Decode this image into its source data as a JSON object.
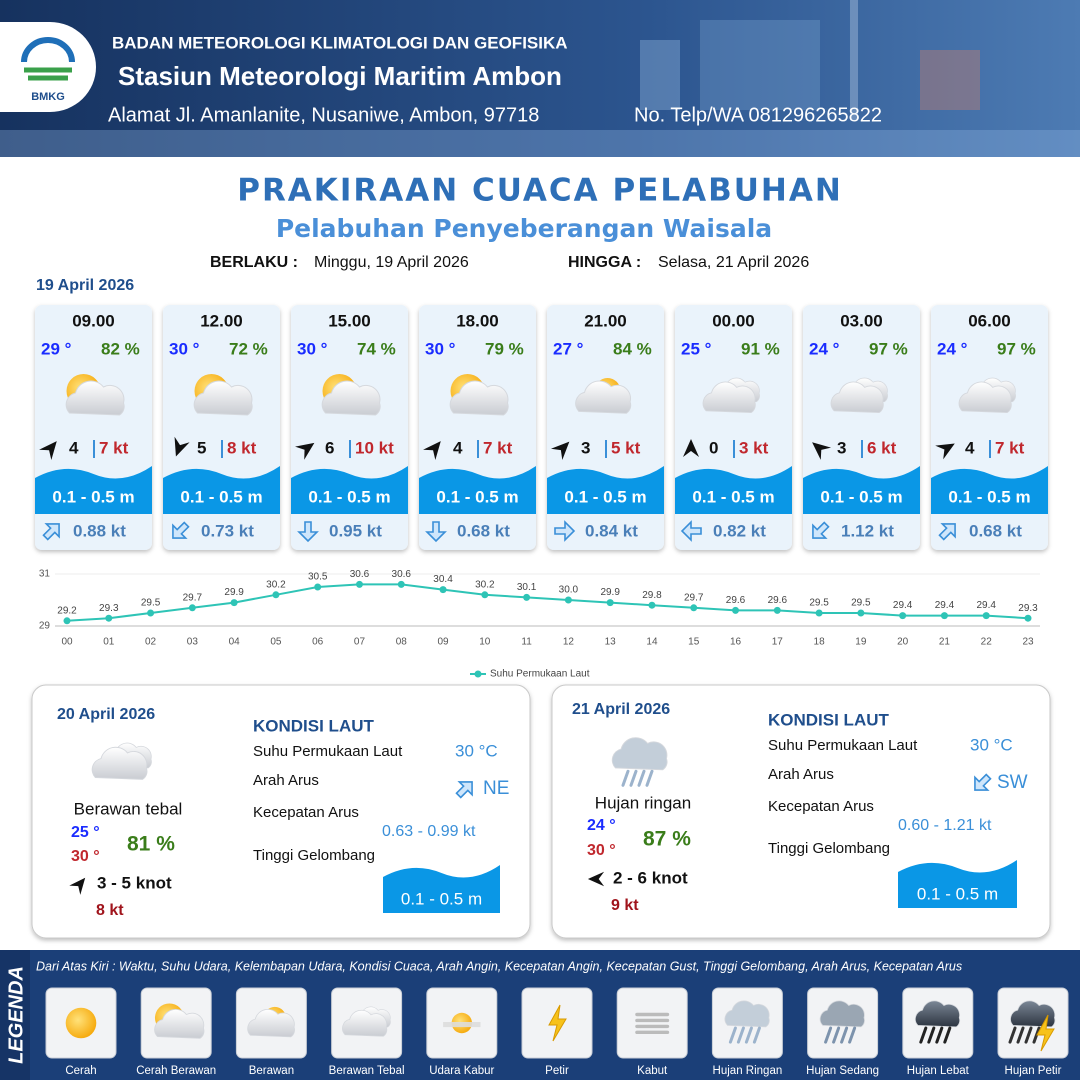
{
  "header": {
    "logo": "BMKG",
    "agency": "BADAN METEOROLOGI KLIMATOLOGI DAN GEOFISIKA",
    "station": "Stasiun Meteorologi Maritim Ambon",
    "address": "Alamat Jl. Amanlanite, Nusaniwe, Ambon, 97718",
    "phone": "No. Telp/WA  081296265822"
  },
  "title": "PRAKIRAAN CUACA PELABUHAN",
  "subtitle": "Pelabuhan Penyeberangan Waisala",
  "valid_from_label": "BERLAKU :",
  "valid_from": "Minggu, 19 April 2026",
  "valid_to_label": "HINGGA :",
  "valid_to": "Selasa, 21 April 2026",
  "day1_date": "19 April 2026",
  "cards": [
    {
      "time": "09.00",
      "temp": "29 °",
      "humidity": "82 %",
      "wind": "4",
      "gust": "7 kt",
      "wave": "0.1 - 0.5 m",
      "current": "0.88 kt"
    },
    {
      "time": "12.00",
      "temp": "30 °",
      "humidity": "72 %",
      "wind": "5",
      "gust": "8 kt",
      "wave": "0.1 - 0.5 m",
      "current": "0.73 kt"
    },
    {
      "time": "15.00",
      "temp": "30 °",
      "humidity": "74 %",
      "wind": "6",
      "gust": "10 kt",
      "wave": "0.1 - 0.5 m",
      "current": "0.95 kt"
    },
    {
      "time": "18.00",
      "temp": "30 °",
      "humidity": "79 %",
      "wind": "4",
      "gust": "7 kt",
      "wave": "0.1 - 0.5 m",
      "current": "0.68 kt"
    },
    {
      "time": "21.00",
      "temp": "27 °",
      "humidity": "84 %",
      "wind": "3",
      "gust": "5 kt",
      "wave": "0.1 - 0.5 m",
      "current": "0.84 kt"
    },
    {
      "time": "00.00",
      "temp": "25 °",
      "humidity": "91 %",
      "wind": "0",
      "gust": "3 kt",
      "wave": "0.1 - 0.5 m",
      "current": "0.82 kt"
    },
    {
      "time": "03.00",
      "temp": "24 °",
      "humidity": "97 %",
      "wind": "3",
      "gust": "6 kt",
      "wave": "0.1 - 0.5 m",
      "current": "1.12 kt"
    },
    {
      "time": "06.00",
      "temp": "24 °",
      "humidity": "97 %",
      "wind": "4",
      "gust": "7 kt",
      "wave": "0.1 - 0.5 m",
      "current": "0.68 kt"
    }
  ],
  "chart_data": {
    "type": "line",
    "categories": [
      "00",
      "01",
      "02",
      "03",
      "04",
      "05",
      "06",
      "07",
      "08",
      "09",
      "10",
      "11",
      "12",
      "13",
      "14",
      "15",
      "16",
      "17",
      "18",
      "19",
      "20",
      "21",
      "22",
      "23"
    ],
    "series": [
      {
        "name": "Suhu Permukaan Laut",
        "color": "#2ec4b6",
        "values": [
          29.2,
          29.3,
          29.5,
          29.7,
          29.9,
          30.2,
          30.5,
          30.6,
          30.6,
          30.4,
          30.2,
          30.1,
          30.0,
          29.9,
          29.8,
          29.7,
          29.6,
          29.6,
          29.5,
          29.5,
          29.4,
          29.4,
          29.4,
          29.3
        ],
        "value_labels": [
          "29.2",
          "29.3",
          "29.5",
          "29.7",
          "29.9",
          "30.2",
          "30.5",
          "30.6",
          "30.6",
          "30.4",
          "30.2",
          "30.1",
          "30.0",
          "29.9",
          "29.8",
          "29.7",
          "29.6",
          "29.6",
          "29.5",
          "29.5",
          "29.4",
          "29.4",
          "29.4",
          "29.3"
        ]
      }
    ],
    "ylim": [
      29,
      31
    ],
    "yticks": [
      29,
      31
    ],
    "grid": true,
    "legend": "bottom"
  },
  "days": [
    {
      "date": "20 April 2026",
      "condition": "Berawan tebal",
      "temp_min": "25 °",
      "temp_max": "30 °",
      "humidity": "81 %",
      "wind": "3  - 5 knot",
      "gust": "8 kt",
      "heading": "KONDISI LAUT",
      "sst_label": "Suhu Permukaan Laut",
      "sst": "30 °C",
      "current_dir_label": "Arah Arus",
      "current_dir": "NE",
      "current_speed_label": "Kecepatan Arus",
      "current_speed": "0.63 - 0.99 kt",
      "wave_label": "Tinggi Gelombang",
      "wave": "0.1 - 0.5 m"
    },
    {
      "date": "21 April 2026",
      "condition": "Hujan ringan",
      "temp_min": "24 °",
      "temp_max": "30 °",
      "humidity": "87 %",
      "wind": "2  - 6 knot",
      "gust": "9 kt",
      "heading": "KONDISI LAUT",
      "sst_label": "Suhu Permukaan Laut",
      "sst": "30 °C",
      "current_dir_label": "Arah Arus",
      "current_dir": "SW",
      "current_speed_label": "Kecepatan Arus",
      "current_speed": "0.60 - 1.21 kt",
      "wave_label": "Tinggi Gelombang",
      "wave": "0.1 - 0.5 m"
    }
  ],
  "legend": {
    "title": "LEGENDA",
    "description": "Dari Atas Kiri : Waktu, Suhu Udara, Kelembapan Udara, Kondisi Cuaca, Arah Angin, Kecepatan Angin, Kecepatan Gust, Tinggi Gelombang, Arah Arus, Kecepatan Arus",
    "items": [
      "Cerah",
      "Cerah Berawan",
      "Berawan",
      "Berawan Tebal",
      "Udara Kabur",
      "Petir",
      "Kabut",
      "Hujan Ringan",
      "Hujan Sedang",
      "Hujan Lebat",
      "Hujan Petir"
    ]
  }
}
